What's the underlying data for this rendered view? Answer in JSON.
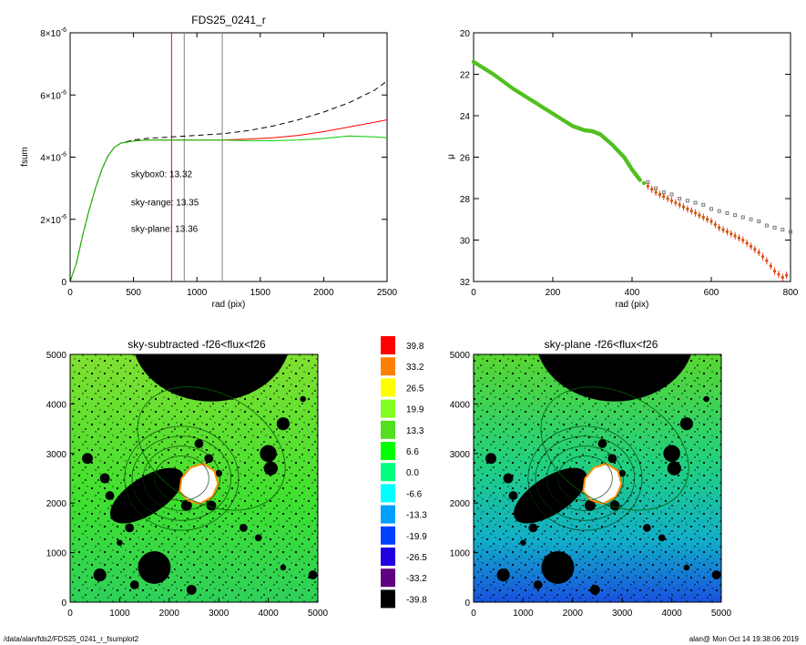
{
  "footer": {
    "path": "/data/alan/fds2/FDS25_0241_r_fsumplot2",
    "stamp": "alan@  Mon Oct 14 19:38:06 2019"
  },
  "colorbar": {
    "labels": [
      "39.8",
      "33.2",
      "26.5",
      "19.9",
      "13.3",
      "6.6",
      "0.0",
      "-6.6",
      "-13.3",
      "-19.9",
      "-26.5",
      "-33.2",
      "-39.8"
    ],
    "colors": [
      "#ff0000",
      "#ff8000",
      "#ffff00",
      "#80ff20",
      "#50e020",
      "#00ff00",
      "#00ff80",
      "#00ffff",
      "#00a0ff",
      "#0040ff",
      "#2000e0",
      "#600080",
      "#000000"
    ]
  },
  "chart_data": [
    {
      "type": "line",
      "title": "FDS25_0241_r",
      "xlabel": "rad (pix)",
      "ylabel": "fsum",
      "xlim": [
        0,
        2500
      ],
      "ylim": [
        0,
        8e-06
      ],
      "x_ticks": [
        "0",
        "500",
        "1000",
        "1500",
        "2000",
        "2500"
      ],
      "y_ticks": [
        {
          "v": 0,
          "text": "0"
        },
        {
          "v": 2e-06,
          "text": "2×10",
          "exp": "-6"
        },
        {
          "v": 4e-06,
          "text": "4×10",
          "exp": "-6"
        },
        {
          "v": 6e-06,
          "text": "6×10",
          "exp": "-6"
        },
        {
          "v": 8e-06,
          "text": "8×10",
          "exp": "-6"
        }
      ],
      "series": [
        {
          "color": "#000000",
          "dash": "6,4",
          "x": [
            0,
            50,
            100,
            150,
            200,
            250,
            300,
            350,
            400,
            500,
            600,
            800,
            1000,
            1200,
            1400,
            1600,
            1800,
            2000,
            2200,
            2400,
            2500
          ],
          "y": [
            0,
            6e-07,
            1.5e-06,
            2.3e-06,
            3e-06,
            3.6e-06,
            4.05e-06,
            4.32e-06,
            4.45e-06,
            4.55e-06,
            4.6e-06,
            4.65e-06,
            4.7e-06,
            4.75e-06,
            4.85e-06,
            5e-06,
            5.2e-06,
            5.45e-06,
            5.75e-06,
            6.15e-06,
            6.45e-06
          ]
        },
        {
          "color": "#ff0000",
          "dash": "",
          "x": [
            0,
            50,
            100,
            150,
            200,
            250,
            300,
            350,
            400,
            500,
            600,
            800,
            1000,
            1200,
            1400,
            1600,
            1800,
            2000,
            2200,
            2400,
            2500
          ],
          "y": [
            0,
            6e-07,
            1.5e-06,
            2.3e-06,
            3e-06,
            3.6e-06,
            4.05e-06,
            4.32e-06,
            4.45e-06,
            4.52e-06,
            4.55e-06,
            4.55e-06,
            4.55e-06,
            4.55e-06,
            4.58e-06,
            4.62e-06,
            4.7e-06,
            4.82e-06,
            4.97e-06,
            5.12e-06,
            5.2e-06
          ]
        },
        {
          "color": "#00cc00",
          "dash": "",
          "x": [
            0,
            50,
            100,
            150,
            200,
            250,
            300,
            350,
            400,
            500,
            600,
            800,
            1000,
            1200,
            1400,
            1600,
            1800,
            2000,
            2200,
            2400,
            2500
          ],
          "y": [
            0,
            6e-07,
            1.5e-06,
            2.3e-06,
            3e-06,
            3.6e-06,
            4.05e-06,
            4.32e-06,
            4.45e-06,
            4.52e-06,
            4.55e-06,
            4.55e-06,
            4.55e-06,
            4.55e-06,
            4.53e-06,
            4.53e-06,
            4.55e-06,
            4.6e-06,
            4.68e-06,
            4.65e-06,
            4.62e-06
          ]
        }
      ],
      "vlines": [
        {
          "x": 800,
          "color": "#ff0000"
        },
        {
          "x": 900,
          "color": "#808080"
        },
        {
          "x": 1200,
          "color": "#808080"
        }
      ],
      "annotations": [
        {
          "text": "skybox0: 13.32",
          "color": "#000000",
          "x": 480,
          "y": 3.35e-06
        },
        {
          "text": "sky-range: 13.35",
          "color": "#ff0000",
          "x": 480,
          "y": 2.45e-06
        },
        {
          "text": "sky-plane: 13.36",
          "color": "#00cc00",
          "x": 480,
          "y": 1.6e-06
        }
      ]
    },
    {
      "type": "scatter",
      "title": "",
      "xlabel": "rad (pix)",
      "ylabel": "μ",
      "xlim": [
        0,
        800
      ],
      "ylim": [
        32,
        20
      ],
      "x_ticks": [
        "0",
        "200",
        "400",
        "600",
        "800"
      ],
      "y_ticks": [
        "20",
        "22",
        "24",
        "26",
        "28",
        "30",
        "32"
      ],
      "profile": {
        "x": [
          0,
          50,
          100,
          150,
          200,
          250,
          280,
          300,
          320,
          350,
          380,
          400,
          420,
          440,
          460,
          480,
          500,
          520,
          540,
          560,
          580,
          600,
          620,
          640,
          660,
          680,
          700,
          720,
          740,
          760,
          780,
          800
        ],
        "y": [
          21.4,
          22.0,
          22.7,
          23.3,
          23.9,
          24.5,
          24.7,
          24.75,
          24.9,
          25.4,
          26.0,
          26.6,
          27.1,
          27.4,
          27.7,
          27.9,
          28.1,
          28.3,
          28.5,
          28.7,
          28.9,
          29.1,
          29.4,
          29.6,
          29.8,
          30.0,
          30.3,
          30.6,
          31.0,
          31.5,
          31.8,
          31.6
        ]
      },
      "skybox_extra": {
        "x": [
          440,
          460,
          480,
          500,
          520,
          540,
          560,
          580,
          600,
          620,
          640,
          660,
          680,
          700,
          720,
          740,
          760,
          780,
          800
        ],
        "y": [
          27.2,
          27.5,
          27.7,
          27.8,
          28.0,
          28.1,
          28.2,
          28.3,
          28.5,
          28.6,
          28.7,
          28.8,
          28.9,
          29.0,
          29.1,
          29.3,
          29.4,
          29.5,
          29.6
        ]
      }
    },
    {
      "type": "heatmap",
      "title": "sky-subtracted -f26<flux<f26",
      "xlim": [
        0,
        5000
      ],
      "ylim": [
        0,
        5000
      ],
      "x_ticks": [
        "0",
        "1000",
        "2000",
        "3000",
        "4000",
        "5000"
      ],
      "y_ticks": [
        "0",
        "1000",
        "2000",
        "3000",
        "4000",
        "5000"
      ]
    },
    {
      "type": "heatmap",
      "title": "sky-plane -f26<flux<f26",
      "xlim": [
        0,
        5000
      ],
      "ylim": [
        0,
        5000
      ],
      "x_ticks": [
        "0",
        "1000",
        "2000",
        "3000",
        "4000",
        "5000"
      ],
      "y_ticks": [
        "0",
        "1000",
        "2000",
        "3000",
        "4000",
        "5000"
      ]
    }
  ]
}
